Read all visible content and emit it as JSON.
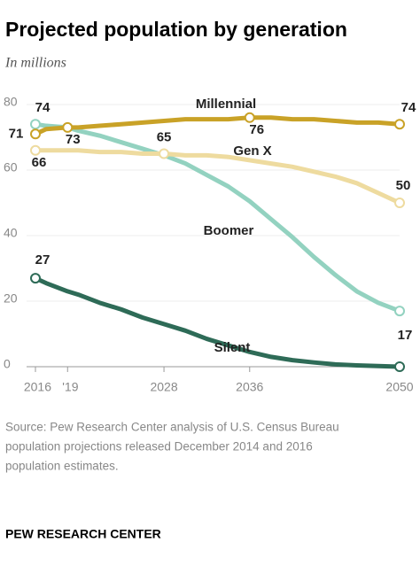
{
  "chart_data": {
    "type": "line",
    "title": "Projected population by generation",
    "subtitle": "In millions",
    "x": [
      2016,
      2017,
      2019,
      2020,
      2022,
      2024,
      2026,
      2028,
      2030,
      2032,
      2034,
      2036,
      2038,
      2040,
      2042,
      2044,
      2046,
      2048,
      2050
    ],
    "series": [
      {
        "name": "Millennial",
        "color": "#c9a227",
        "values": [
          71,
          72.5,
          73,
          73,
          73.5,
          74,
          74.5,
          75,
          75.5,
          75.5,
          75.5,
          76,
          76,
          75.5,
          75.5,
          75,
          74.5,
          74.5,
          74
        ],
        "value_labels": [
          71,
          null,
          73,
          null,
          null,
          null,
          null,
          null,
          null,
          null,
          null,
          76,
          null,
          null,
          null,
          null,
          null,
          null,
          74
        ]
      },
      {
        "name": "Gen X",
        "color": "#eedb9f",
        "values": [
          66,
          66,
          66,
          66,
          65.5,
          65.5,
          65,
          65,
          64.5,
          64.5,
          64,
          63,
          62,
          61,
          59.5,
          58,
          56,
          53,
          50
        ],
        "value_labels": [
          66,
          null,
          null,
          null,
          null,
          null,
          null,
          65,
          null,
          null,
          null,
          null,
          null,
          null,
          null,
          null,
          null,
          null,
          50
        ]
      },
      {
        "name": "Boomer",
        "color": "#93d2c0",
        "values": [
          74,
          73.5,
          73,
          72,
          70.5,
          68.5,
          66.5,
          64.5,
          62,
          58.5,
          55,
          50.5,
          45,
          39.5,
          33.5,
          28,
          23,
          19.5,
          17
        ],
        "value_labels": [
          74,
          null,
          null,
          null,
          null,
          null,
          null,
          null,
          null,
          null,
          null,
          null,
          null,
          null,
          null,
          null,
          null,
          null,
          17
        ]
      },
      {
        "name": "Silent",
        "color": "#2e6b57",
        "values": [
          27,
          25.5,
          23,
          22,
          19.5,
          17.5,
          15,
          13,
          11,
          8.5,
          6.5,
          4.5,
          3,
          2,
          1.3,
          0.7,
          0.4,
          0.2,
          0
        ],
        "value_labels": [
          27,
          null,
          null,
          null,
          null,
          null,
          null,
          null,
          null,
          null,
          null,
          null,
          null,
          null,
          null,
          null,
          null,
          null,
          null
        ]
      }
    ],
    "xlim": [
      2016,
      2050
    ],
    "xticks": [
      2016,
      {
        "value": 2019,
        "label": "'19"
      },
      2028,
      2036,
      2050
    ],
    "ylim": [
      0,
      80
    ],
    "yticks": [
      0,
      20,
      40,
      60,
      80
    ],
    "grid": true,
    "source": [
      "Source: Pew Research Center analysis of U.S. Census Bureau",
      "population projections released December 2014 and 2016",
      "population estimates."
    ],
    "footer": "PEW RESEARCH CENTER"
  }
}
